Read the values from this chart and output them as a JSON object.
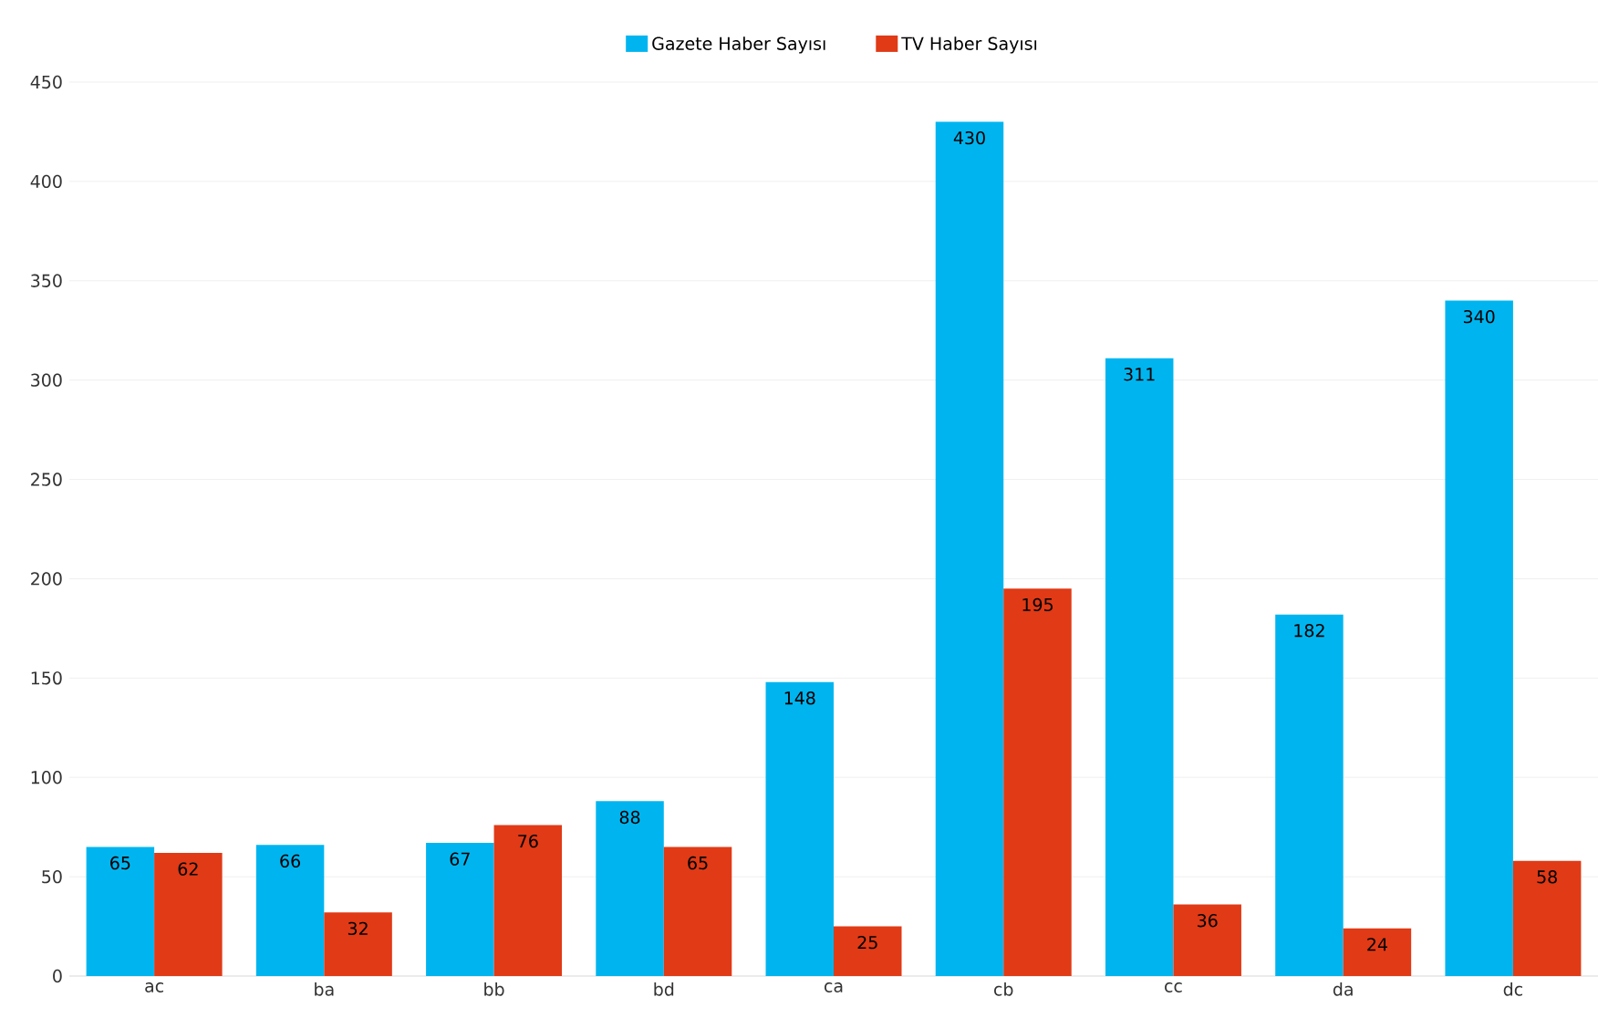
{
  "chart_data": {
    "type": "bar",
    "categories": [
      "ac",
      "ba",
      "bb",
      "bd",
      "ca",
      "cb",
      "cc",
      "da",
      "dc"
    ],
    "series": [
      {
        "name": "Gazete Haber Sayısı",
        "color": "#00b5ef",
        "values": [
          65,
          66,
          67,
          88,
          148,
          430,
          311,
          182,
          340
        ]
      },
      {
        "name": "TV Haber Sayısı",
        "color": "#e03a16",
        "values": [
          62,
          32,
          76,
          65,
          25,
          195,
          36,
          24,
          58
        ]
      }
    ],
    "ylim": [
      0,
      450
    ],
    "yticks": [
      0,
      50,
      100,
      150,
      200,
      250,
      300,
      350,
      400,
      450
    ],
    "grid": "y",
    "legend": "top",
    "data_labels": true
  }
}
